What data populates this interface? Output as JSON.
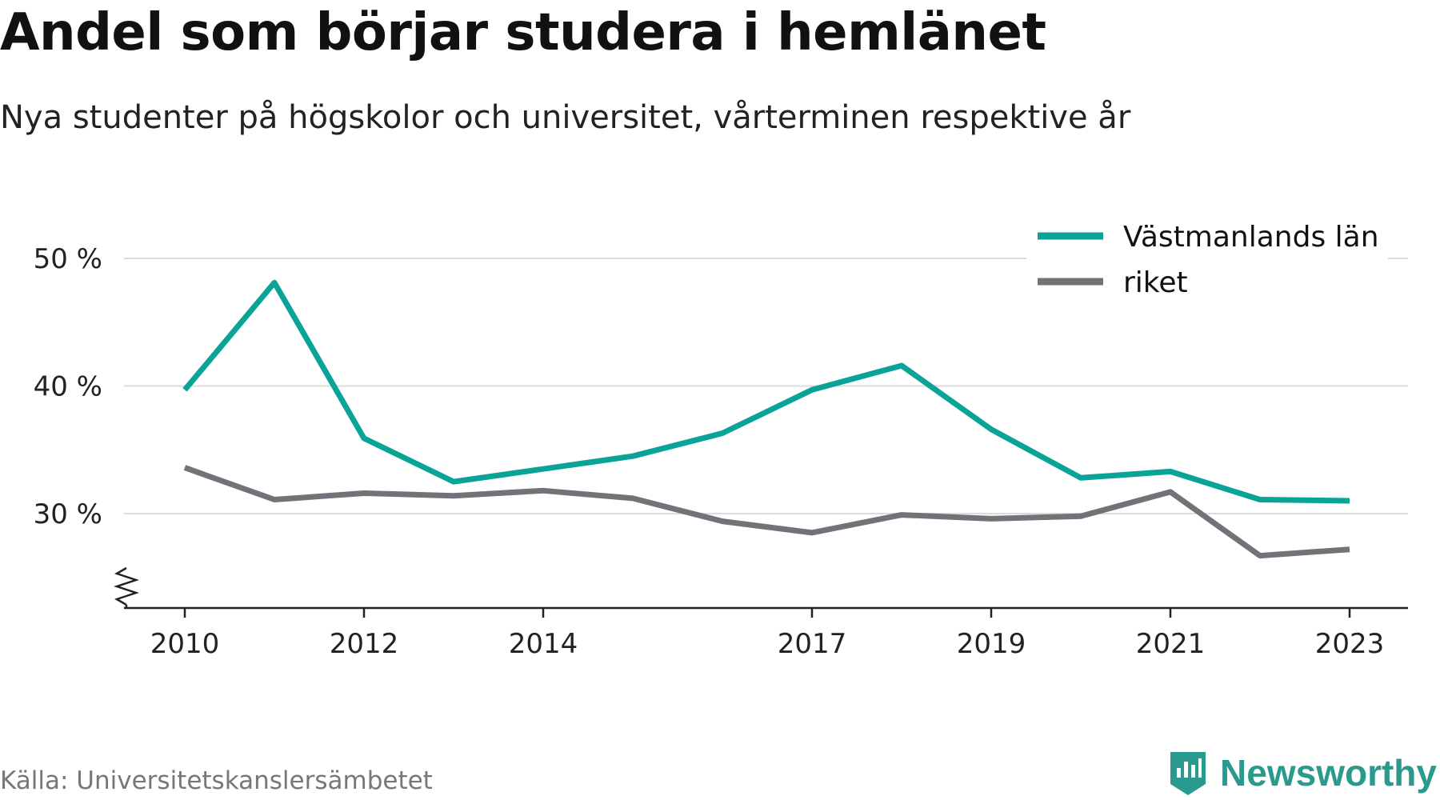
{
  "title": "Andel som börjar studera i hemlänet",
  "subtitle": "Nya studenter på högskolor och universitet, vårterminen respektive år",
  "source": "Källa: Universitetskanslersämbetet",
  "brand": "Newsworthy",
  "chart_data": {
    "type": "line",
    "title": "Andel som börjar studera i hemlänet",
    "subtitle": "Nya studenter på högskolor och universitet, vårterminen respektive år",
    "x": [
      2010,
      2011,
      2012,
      2013,
      2014,
      2015,
      2016,
      2017,
      2018,
      2019,
      2020,
      2021,
      2022,
      2023
    ],
    "x_tick_labels": [
      "2010",
      "2012",
      "2014",
      "2017",
      "2019",
      "2021",
      "2023"
    ],
    "y_ticks": [
      30,
      40,
      50
    ],
    "y_tick_labels": [
      "30 %",
      "40 %",
      "50 %"
    ],
    "ylim": [
      22.5,
      52
    ],
    "axis_break": true,
    "grid": true,
    "legend_position": "top-right",
    "series": [
      {
        "name": "Västmanlands län",
        "color": "#0aa398",
        "values": [
          39.7,
          48.1,
          35.9,
          32.5,
          33.5,
          34.5,
          36.3,
          39.7,
          41.6,
          36.6,
          32.8,
          33.3,
          31.1,
          31.0
        ]
      },
      {
        "name": "riket",
        "color": "#737278",
        "values": [
          33.6,
          31.1,
          31.6,
          31.4,
          31.8,
          31.2,
          29.4,
          28.5,
          29.9,
          29.6,
          29.8,
          31.7,
          26.7,
          27.2
        ]
      }
    ]
  }
}
